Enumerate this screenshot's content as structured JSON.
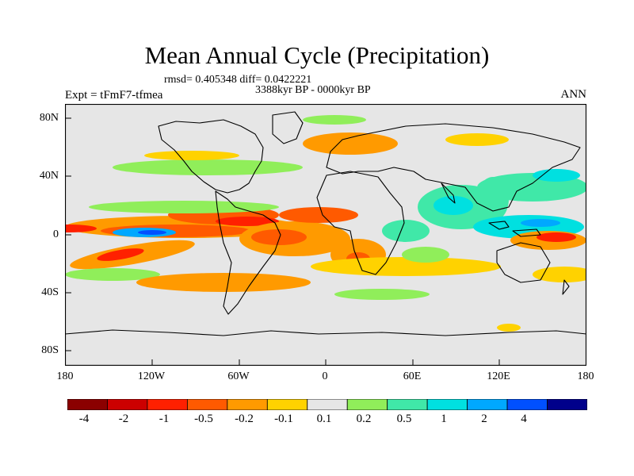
{
  "title": "Mean Annual Cycle (Precipitation)",
  "stats": "rmsd= 0.405348 diff= 0.0422221",
  "period": "3388kyr BP - 0000kyr BP",
  "experiment": "Expt = tFmF7-tfmea",
  "season": "ANN",
  "map": {
    "lat_labels": [
      "80N",
      "40N",
      "0",
      "40S",
      "80S"
    ],
    "lon_labels": [
      "180",
      "120W",
      "60W",
      "0",
      "60E",
      "120E",
      "180"
    ],
    "background_color": "#e6e6e6"
  },
  "colorbar": {
    "colors": [
      "#8b0000",
      "#cc0000",
      "#ff2000",
      "#ff5a00",
      "#ff9a00",
      "#ffd200",
      "#e6e6e6",
      "#90ee5a",
      "#40e8a8",
      "#00e0e0",
      "#00a8ff",
      "#0050ff",
      "#00008b"
    ],
    "tick_labels": [
      "-4",
      "-2",
      "-1",
      "-0.5",
      "-0.2",
      "-0.1",
      "0.1",
      "0.2",
      "0.5",
      "1",
      "2",
      "4"
    ]
  }
}
